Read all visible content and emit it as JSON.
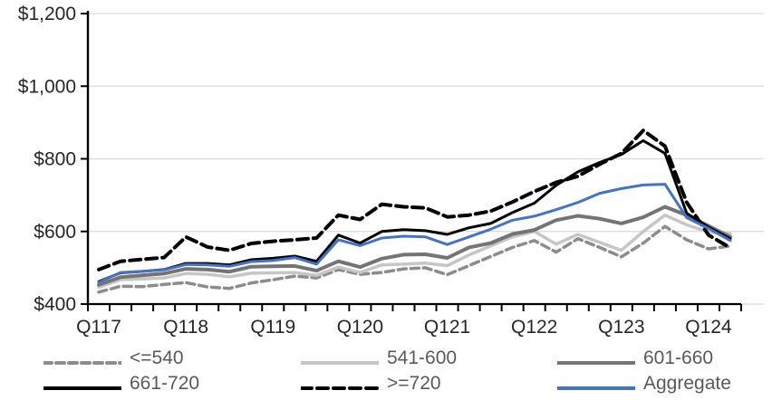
{
  "chart_data": {
    "type": "line",
    "title": "",
    "xlabel": "",
    "ylabel": "",
    "grid": "horizontal",
    "legend_position": "bottom",
    "gridline_color": "#D9D9D9",
    "axis_color": "#000000",
    "x_axis": {
      "labels": [
        "Q117",
        "Q217",
        "Q317",
        "Q417",
        "Q118",
        "Q218",
        "Q318",
        "Q418",
        "Q119",
        "Q219",
        "Q319",
        "Q419",
        "Q120",
        "Q220",
        "Q320",
        "Q420",
        "Q121",
        "Q221",
        "Q321",
        "Q421",
        "Q122",
        "Q222",
        "Q322",
        "Q422",
        "Q123",
        "Q223",
        "Q323",
        "Q423",
        "Q124",
        "Q224"
      ],
      "shown_label_indices": [
        0,
        4,
        8,
        12,
        16,
        20,
        24,
        28
      ],
      "shown_labels": [
        "Q117",
        "Q118",
        "Q119",
        "Q120",
        "Q121",
        "Q122",
        "Q123",
        "Q124"
      ]
    },
    "y_axis": {
      "min": 400,
      "max": 1200,
      "step": 200,
      "tick_values": [
        400,
        600,
        800,
        1000,
        1200
      ],
      "tick_labels": [
        "$400",
        "$600",
        "$800",
        "$1,000",
        "$1,200"
      ]
    },
    "series": [
      {
        "name": "<=540",
        "color": "#8C8C8C",
        "dash": "9 5",
        "width": 3.5,
        "values": [
          433,
          449,
          448,
          454,
          459,
          447,
          443,
          458,
          467,
          477,
          472,
          495,
          482,
          487,
          497,
          500,
          481,
          506,
          531,
          556,
          575,
          543,
          580,
          556,
          530,
          568,
          614,
          577,
          552,
          560
        ]
      },
      {
        "name": "541-600",
        "color": "#C6C6C6",
        "dash": "",
        "width": 3.5,
        "values": [
          446,
          467,
          469,
          472,
          484,
          482,
          475,
          485,
          486,
          487,
          479,
          502,
          487,
          508,
          510,
          513,
          506,
          535,
          560,
          585,
          600,
          565,
          592,
          570,
          548,
          600,
          645,
          618,
          599,
          594
        ]
      },
      {
        "name": "601-660",
        "color": "#747474",
        "dash": "",
        "width": 4,
        "values": [
          453,
          474,
          479,
          484,
          497,
          495,
          489,
          503,
          504,
          505,
          492,
          518,
          502,
          525,
          536,
          537,
          527,
          556,
          568,
          593,
          604,
          631,
          643,
          635,
          622,
          639,
          668,
          645,
          615,
          585
        ]
      },
      {
        "name": "661-720",
        "color": "#000000",
        "dash": "",
        "width": 3,
        "values": [
          462,
          486,
          490,
          495,
          512,
          512,
          508,
          522,
          526,
          532,
          518,
          590,
          568,
          600,
          605,
          602,
          592,
          610,
          622,
          652,
          678,
          727,
          764,
          790,
          812,
          850,
          815,
          650,
          612,
          580
        ]
      },
      {
        "name": ">=720",
        "color": "#000000",
        "dash": "12 6",
        "width": 4,
        "values": [
          495,
          518,
          523,
          528,
          585,
          557,
          548,
          567,
          573,
          577,
          582,
          645,
          633,
          675,
          668,
          665,
          640,
          645,
          656,
          681,
          710,
          735,
          752,
          785,
          815,
          878,
          835,
          680,
          590,
          555
        ]
      },
      {
        "name": "Aggregate",
        "color": "#4472C4",
        "dash": "",
        "width": 3,
        "values": [
          460,
          487,
          490,
          494,
          509,
          508,
          504,
          517,
          520,
          528,
          510,
          577,
          561,
          582,
          587,
          585,
          564,
          585,
          606,
          631,
          642,
          660,
          680,
          705,
          718,
          728,
          730,
          638,
          608,
          575
        ]
      }
    ]
  }
}
